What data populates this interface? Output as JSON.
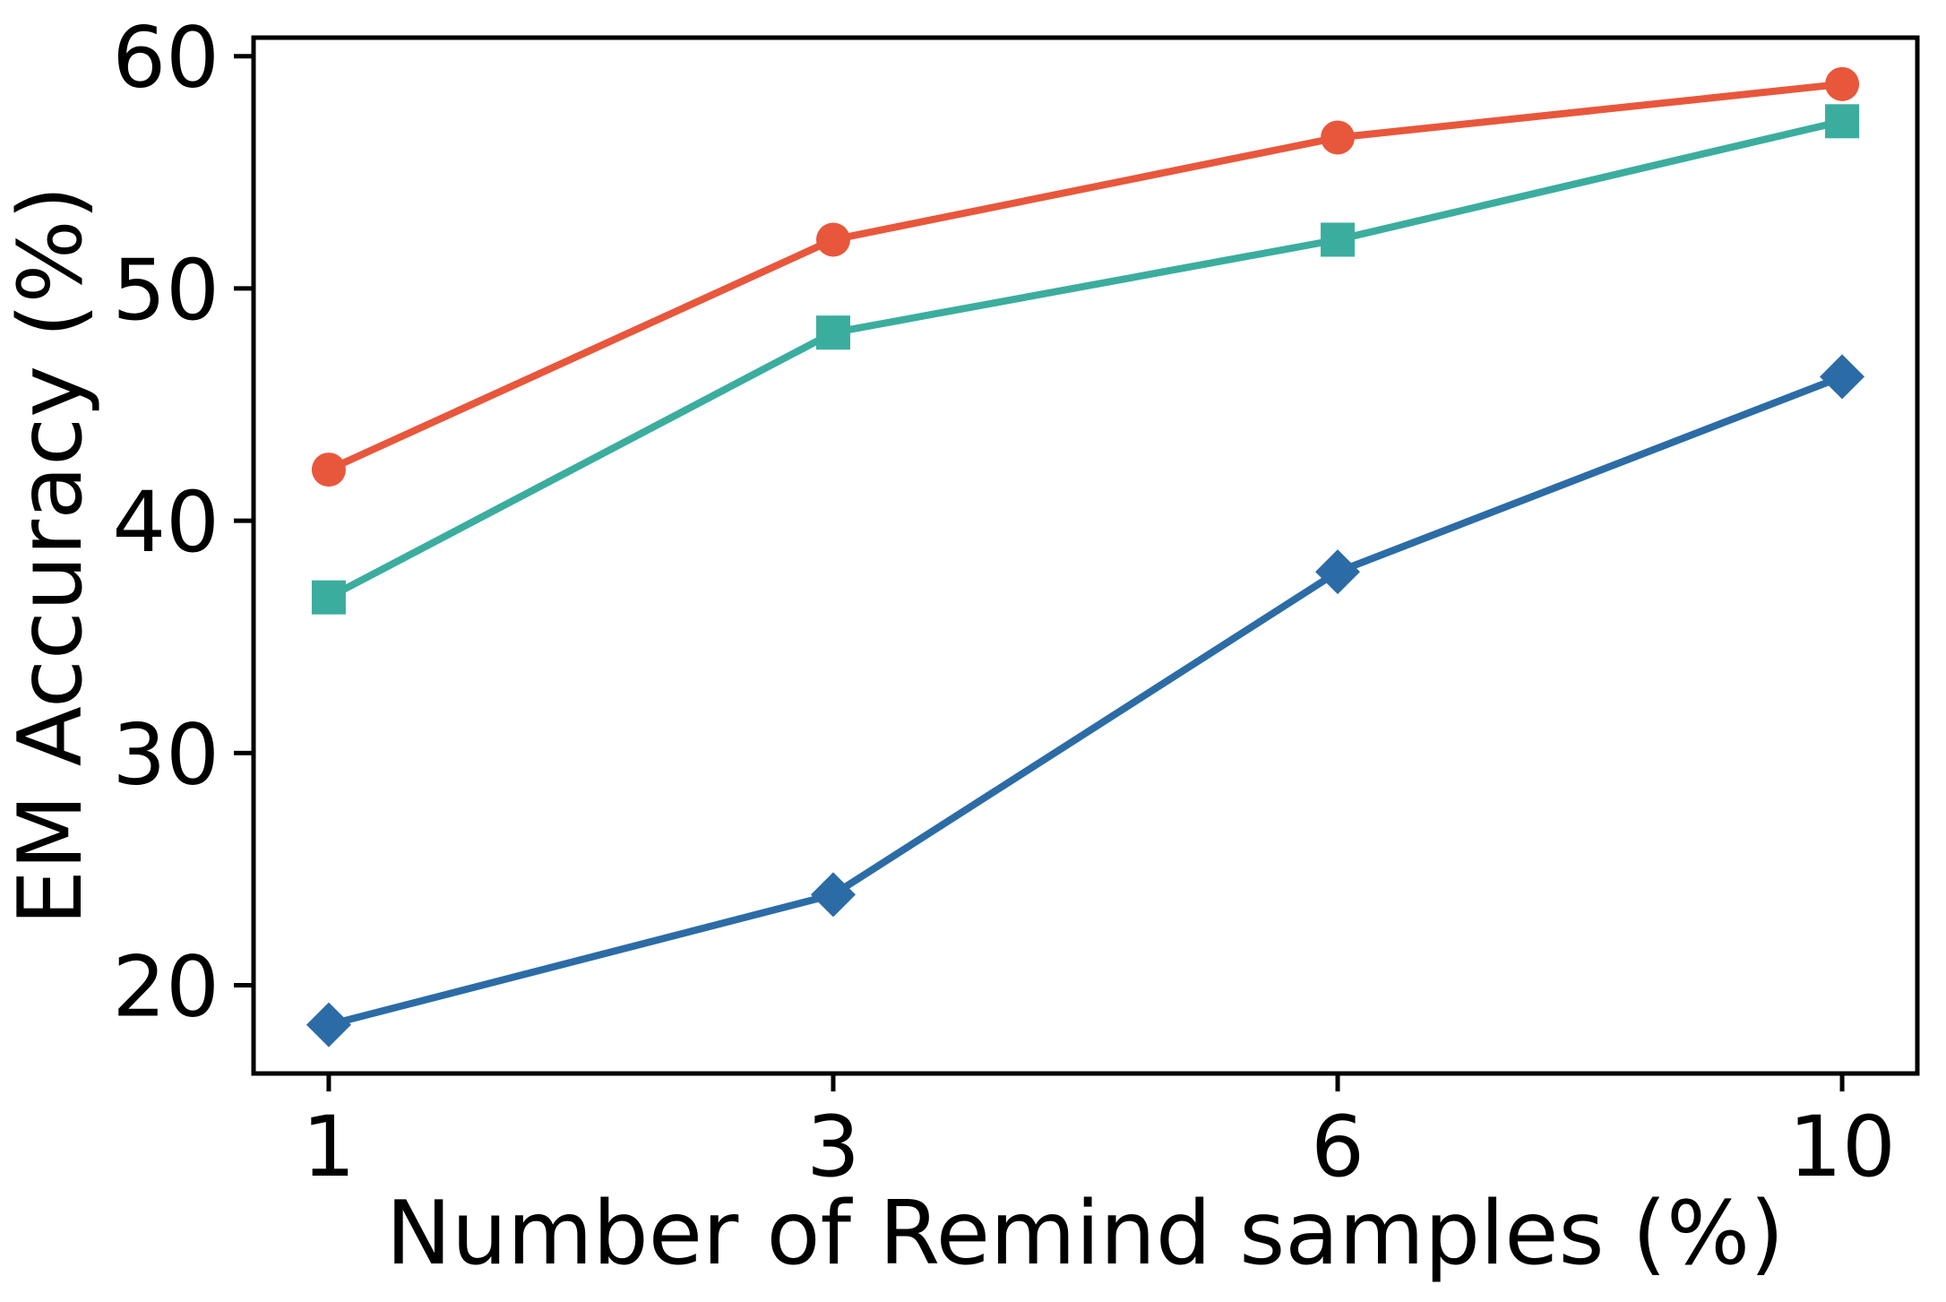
{
  "chart_data": {
    "type": "line",
    "x": [
      1,
      3,
      6,
      10
    ],
    "xtick_labels": [
      "1",
      "3",
      "6",
      "10"
    ],
    "yticks": [
      20,
      30,
      40,
      50,
      60
    ],
    "ylim": [
      16.2,
      60.8
    ],
    "xlabel": "Number of Remind samples (%)",
    "ylabel": "EM Accuracy (%)",
    "grid": false,
    "legend": "none",
    "x_spacing": "equal-interval",
    "series": [
      {
        "name": "red-circle-series",
        "marker": "circle",
        "color": "#E8573C",
        "values": [
          42.2,
          52.1,
          56.5,
          58.8
        ]
      },
      {
        "name": "teal-square-series",
        "marker": "square",
        "color": "#3BAD9E",
        "values": [
          36.7,
          48.1,
          52.1,
          57.2
        ]
      },
      {
        "name": "blue-diamond-series",
        "marker": "diamond",
        "color": "#2C6CA6",
        "values": [
          18.3,
          23.9,
          37.8,
          46.2
        ]
      }
    ],
    "colors": {
      "axis": "#000000",
      "background": "#ffffff",
      "red": "#E8573C",
      "teal": "#3BAD9E",
      "blue": "#2C6CA6"
    }
  }
}
